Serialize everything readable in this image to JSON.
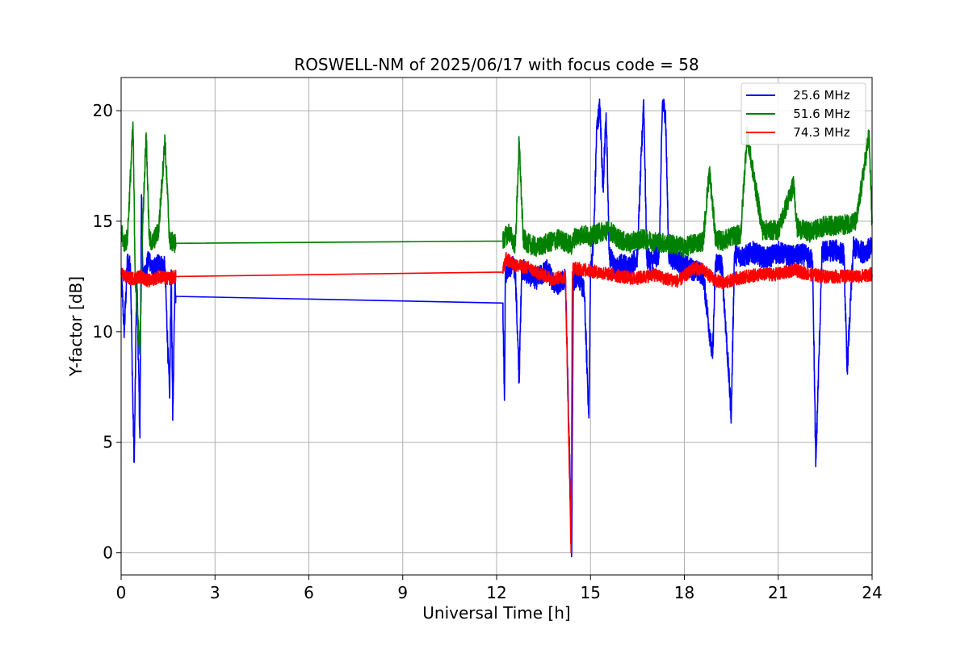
{
  "chart_data": {
    "type": "line",
    "title": "ROSWELL-NM of 2025/06/17 with focus code = 58",
    "xlabel": "Universal Time [h]",
    "ylabel": "Y-factor [dB]",
    "xlim": [
      0,
      24
    ],
    "ylim": [
      -1,
      21.5
    ],
    "xticks": [
      0,
      3,
      6,
      9,
      12,
      15,
      18,
      21,
      24
    ],
    "yticks": [
      0,
      5,
      10,
      15,
      20
    ],
    "grid": true,
    "legend_position": "top-right",
    "series": [
      {
        "name": "   25.6 MHz",
        "color": "#0000ff",
        "noise": 0.5,
        "x": [
          0.0,
          0.1,
          0.2,
          0.3,
          0.38,
          0.42,
          0.5,
          0.6,
          0.65,
          0.7,
          0.8,
          0.9,
          1.0,
          1.2,
          1.4,
          1.55,
          1.6,
          1.65,
          1.72,
          1.75,
          12.2,
          12.25,
          12.28,
          12.35,
          12.5,
          12.6,
          12.72,
          12.8,
          13.0,
          13.3,
          13.6,
          13.9,
          14.2,
          14.4,
          14.45,
          14.6,
          14.8,
          14.95,
          15.0,
          15.1,
          15.2,
          15.3,
          15.4,
          15.5,
          15.6,
          15.8,
          16.0,
          16.2,
          16.5,
          16.6,
          16.7,
          16.8,
          17.0,
          17.2,
          17.3,
          17.4,
          17.5,
          17.8,
          18.0,
          18.3,
          18.6,
          18.9,
          19.0,
          19.2,
          19.5,
          19.6,
          19.9,
          20.2,
          20.6,
          21.0,
          21.4,
          21.8,
          22.1,
          22.2,
          22.4,
          22.8,
          23.1,
          23.2,
          23.4,
          23.7,
          24.0
        ],
        "y": [
          12.8,
          10.0,
          13.2,
          12.9,
          6.3,
          4.1,
          12.6,
          5.2,
          16.2,
          12.4,
          12.8,
          13.4,
          12.7,
          13.1,
          12.9,
          7.0,
          12.8,
          6.0,
          12.5,
          11.6,
          11.3,
          6.9,
          12.6,
          12.9,
          13.0,
          12.7,
          7.7,
          12.9,
          12.6,
          12.4,
          12.8,
          12.1,
          12.5,
          0.0,
          12.3,
          12.6,
          11.8,
          6.1,
          12.7,
          14.0,
          19.2,
          20.2,
          16.5,
          19.9,
          13.5,
          12.8,
          13.1,
          12.9,
          13.4,
          17.1,
          20.5,
          13.3,
          13.2,
          13.6,
          20.4,
          19.8,
          13.4,
          13.2,
          13.0,
          12.8,
          12.6,
          8.8,
          13.2,
          13.0,
          6.2,
          13.5,
          13.4,
          13.6,
          13.3,
          13.6,
          13.4,
          13.5,
          13.2,
          3.9,
          13.6,
          13.7,
          13.5,
          8.2,
          13.8,
          13.6,
          13.8
        ]
      },
      {
        "name": "   51.6 MHz",
        "color": "#008000",
        "noise": 0.45,
        "x": [
          0.0,
          0.1,
          0.2,
          0.38,
          0.45,
          0.6,
          0.68,
          0.8,
          0.9,
          1.0,
          1.2,
          1.4,
          1.55,
          1.75,
          12.2,
          12.28,
          12.4,
          12.6,
          12.72,
          12.85,
          13.0,
          13.3,
          13.6,
          14.0,
          14.4,
          14.5,
          14.8,
          15.0,
          15.3,
          15.6,
          15.9,
          16.2,
          16.6,
          17.0,
          17.4,
          17.8,
          18.0,
          18.3,
          18.6,
          18.8,
          19.0,
          19.2,
          19.5,
          19.8,
          20.0,
          20.5,
          21.0,
          21.5,
          21.6,
          22.0,
          22.5,
          23.0,
          23.5,
          23.9,
          24.0
        ],
        "y": [
          14.5,
          14.0,
          14.2,
          19.4,
          12.5,
          9.0,
          14.5,
          19.0,
          14.2,
          14.0,
          14.6,
          18.7,
          14.1,
          14.0,
          14.1,
          14.3,
          14.5,
          13.9,
          18.6,
          14.2,
          14.0,
          13.8,
          14.0,
          14.2,
          13.9,
          14.3,
          14.4,
          14.3,
          14.5,
          14.6,
          14.2,
          14.0,
          14.2,
          14.1,
          14.0,
          13.9,
          13.8,
          14.0,
          14.1,
          17.3,
          14.2,
          14.1,
          14.3,
          14.4,
          18.9,
          14.6,
          14.6,
          16.7,
          14.7,
          14.5,
          14.8,
          14.8,
          15.0,
          18.9,
          14.9
        ]
      },
      {
        "name": "   74.3 MHz",
        "color": "#ff0000",
        "noise": 0.3,
        "x": [
          0.0,
          0.3,
          0.6,
          0.9,
          1.2,
          1.5,
          1.75,
          12.2,
          12.3,
          12.6,
          13.0,
          13.4,
          13.8,
          14.2,
          14.38,
          14.42,
          14.46,
          14.8,
          15.2,
          15.6,
          16.0,
          16.4,
          16.8,
          17.0,
          17.4,
          17.8,
          18.0,
          18.3,
          18.6,
          19.0,
          19.3,
          19.6,
          20.0,
          20.5,
          21.0,
          21.5,
          22.0,
          22.5,
          23.0,
          23.5,
          24.0
        ],
        "y": [
          12.6,
          12.4,
          12.5,
          12.3,
          12.5,
          12.4,
          12.5,
          12.7,
          13.3,
          13.0,
          12.9,
          12.6,
          12.4,
          12.5,
          0.0,
          12.6,
          12.9,
          12.8,
          12.7,
          12.6,
          12.5,
          12.4,
          12.5,
          12.6,
          12.4,
          12.3,
          12.5,
          12.9,
          12.8,
          12.3,
          12.2,
          12.4,
          12.5,
          12.6,
          12.6,
          12.8,
          12.6,
          12.5,
          12.5,
          12.5,
          12.6
        ]
      }
    ]
  }
}
